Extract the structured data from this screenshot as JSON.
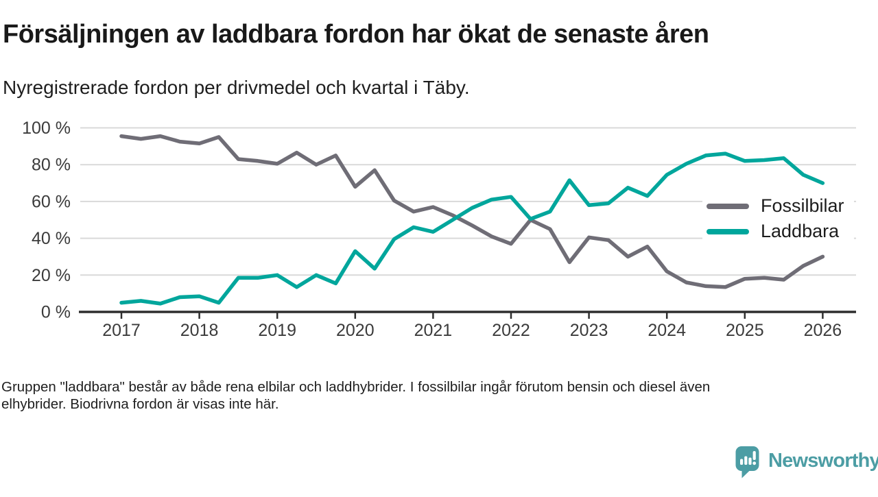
{
  "header": {
    "title": "Försäljningen av laddbara fordon har ökat de senaste åren",
    "subtitle": "Nyregistrerade fordon per drivmedel och kvartal i Täby."
  },
  "chart_data": {
    "type": "line",
    "unit": "percent",
    "x_frequency": "quarterly",
    "x_start": "2017 Q1",
    "x_end": "2026 Q1",
    "x_tick_labels": [
      "2017",
      "2018",
      "2019",
      "2020",
      "2021",
      "2022",
      "2023",
      "2024",
      "2025",
      "2026"
    ],
    "y_ticks": [
      0,
      20,
      40,
      60,
      80,
      100
    ],
    "y_tick_labels": [
      "0 %",
      "20 %",
      "40 %",
      "60 %",
      "80 %",
      "100 %"
    ],
    "ylim": [
      0,
      100
    ],
    "grid": "horizontal",
    "legend_position": "right-middle",
    "series": [
      {
        "name": "Fossilbilar",
        "color": "#6f6d76",
        "values": [
          95.5,
          94,
          95.5,
          92.5,
          91.5,
          95,
          83,
          82,
          80.5,
          86.5,
          80,
          85,
          68,
          77,
          60.5,
          54.5,
          57,
          52.5,
          47,
          41,
          37,
          50,
          45,
          27,
          40.5,
          39,
          30,
          35.5,
          22,
          16,
          14,
          13.5,
          18,
          18.5,
          17.5,
          25,
          30
        ]
      },
      {
        "name": "Laddbara",
        "color": "#00a69c",
        "values": [
          5,
          6,
          4.5,
          8,
          8.5,
          5,
          18.5,
          18.5,
          20,
          13.5,
          20,
          15.5,
          33,
          23.5,
          39.5,
          46,
          43.5,
          50,
          56.5,
          61,
          62.5,
          50.5,
          54.5,
          71.5,
          58,
          59,
          67.5,
          63,
          74.5,
          80.5,
          85,
          86,
          82,
          82.5,
          83.5,
          74.5,
          70
        ]
      }
    ],
    "axis_color": "#2e2e2e",
    "gridline_color": "#d9d9d9",
    "tick_label_color": "#3b3b3b"
  },
  "footer": {
    "lines": [
      "Gruppen \"laddbara\" består av både rena elbilar och laddhybrider. I fossilbilar ingår förutom bensin och diesel även",
      "elhybrider. Biodrivna fordon är visas inte här."
    ]
  },
  "branding": {
    "name": "Newsworthy",
    "color": "#4c9da4",
    "icon": "newsworthy-speech-bubble-chart-icon"
  }
}
